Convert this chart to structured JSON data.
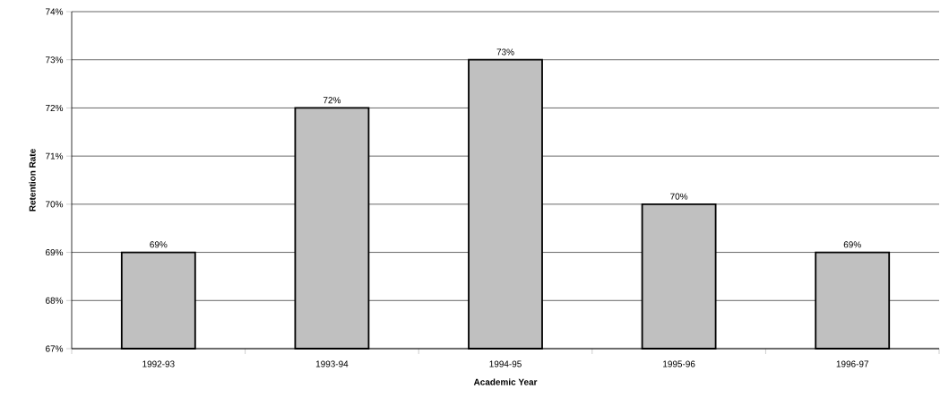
{
  "chart_data": {
    "type": "bar",
    "xlabel": "Academic Year",
    "ylabel": "Retention Rate",
    "categories": [
      "1992-93",
      "1993-94",
      "1994-95",
      "1995-96",
      "1996-97"
    ],
    "values": [
      69,
      72,
      73,
      70,
      69
    ],
    "value_labels": [
      "69%",
      "72%",
      "73%",
      "70%",
      "69%"
    ],
    "color": "#c0c0c0",
    "ylim": [
      67,
      74
    ],
    "yticks": [
      {
        "value": 67,
        "label": "67%"
      },
      {
        "value": 68,
        "label": "68%"
      },
      {
        "value": 69,
        "label": "69%"
      },
      {
        "value": 70,
        "label": "70%"
      },
      {
        "value": 71,
        "label": "71%"
      },
      {
        "value": 72,
        "label": "72%"
      },
      {
        "value": 73,
        "label": "73%"
      },
      {
        "value": 74,
        "label": "74%"
      }
    ],
    "grid": "y"
  }
}
